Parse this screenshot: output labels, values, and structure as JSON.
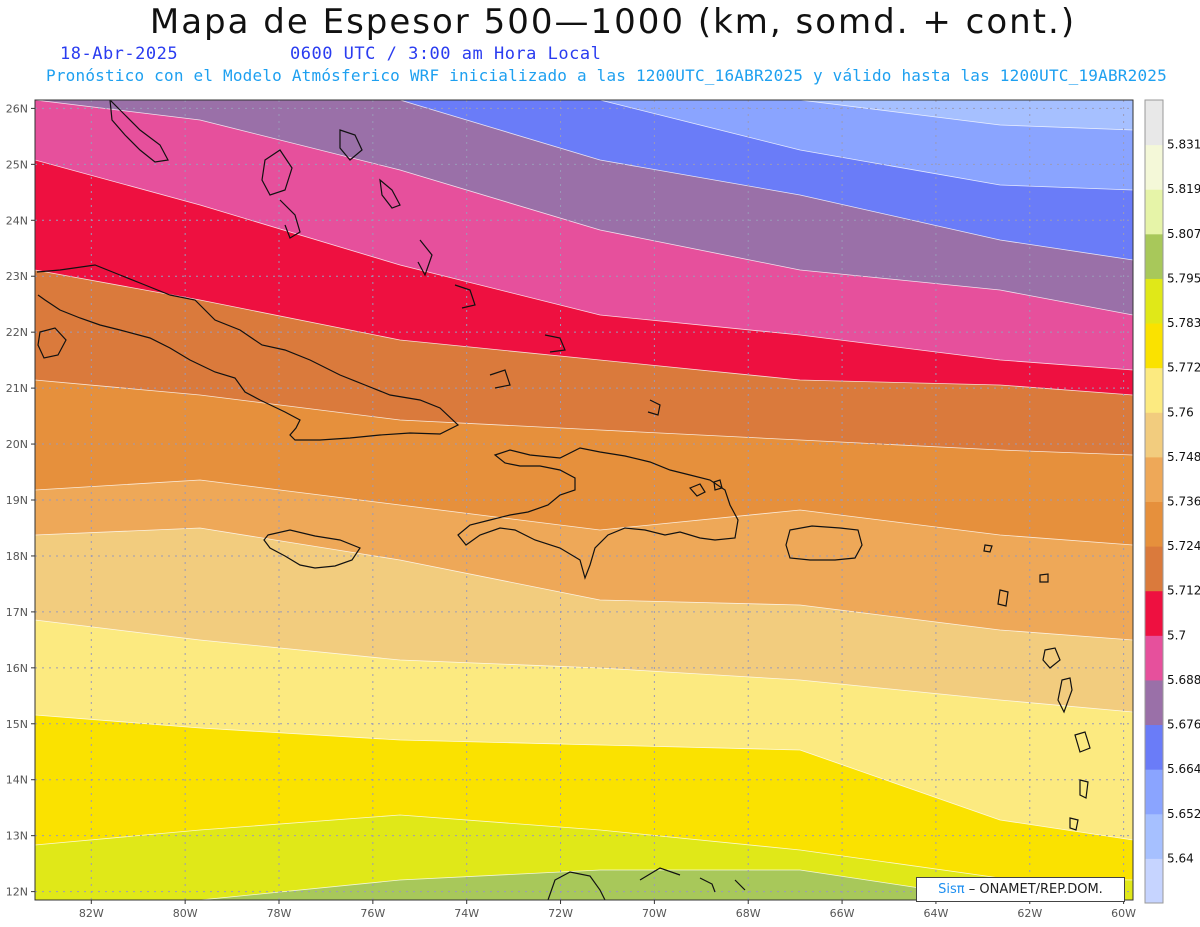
{
  "title": "Mapa de Espesor 500—1000 (km, somd. + cont.)",
  "date": "18-Abr-2025",
  "time": "0600 UTC / 3:00 am Hora Local",
  "subtitle": "Pronóstico con el Modelo Atmósferico WRF inicializado a las 1200UTC_16ABR2025 y válido hasta las  1200UTC_19ABR2025",
  "credit": {
    "logo": "Sisπ",
    "text": "– ONAMET/REP.DOM."
  },
  "map_data": {
    "lon_range": [
      -83.2,
      -59.8
    ],
    "lat_range": [
      11.85,
      26.15
    ],
    "lat_ticks": [
      "12N",
      "13N",
      "14N",
      "15N",
      "16N",
      "17N",
      "18N",
      "19N",
      "20N",
      "21N",
      "22N",
      "23N",
      "24N",
      "25N",
      "26N"
    ],
    "lon_ticks": [
      "82W",
      "80W",
      "78W",
      "76W",
      "74W",
      "72W",
      "70W",
      "68W",
      "66W",
      "64W",
      "62W",
      "60W"
    ],
    "colorbar": {
      "labels": [
        "5.64",
        "5.652",
        "5.664",
        "5.676",
        "5.688",
        "5.7",
        "5.712",
        "5.724",
        "5.736",
        "5.748",
        "5.76",
        "5.772",
        "5.783",
        "5.795",
        "5.807",
        "5.819",
        "5.831"
      ],
      "colors": [
        "#c6d4ff",
        "#a6c0ff",
        "#8aa4ff",
        "#6a7cf8",
        "#9a70a8",
        "#e6509c",
        "#ee1040",
        "#da7a3c",
        "#e6903c",
        "#eea858",
        "#f2cc7e",
        "#fcea80",
        "#fae200",
        "#e0e818",
        "#a8c85a",
        "#e6f4a8",
        "#f4f8d8",
        "#e8e8e8"
      ]
    },
    "bands": [
      {
        "color": "#a8c85a",
        "level": "5.807"
      },
      {
        "color": "#e0e818",
        "level": "5.795"
      },
      {
        "color": "#fae200",
        "level": "5.783"
      },
      {
        "color": "#fcea80",
        "level": "5.772"
      },
      {
        "color": "#f2cc7e",
        "level": "5.76"
      },
      {
        "color": "#eea858",
        "level": "5.748"
      },
      {
        "color": "#e6903c",
        "level": "5.736"
      },
      {
        "color": "#da7a3c",
        "level": "5.724"
      },
      {
        "color": "#ee1040",
        "level": "5.712"
      },
      {
        "color": "#e6509c",
        "level": "5.7"
      },
      {
        "color": "#9a70a8",
        "level": "5.688"
      },
      {
        "color": "#6a7cf8",
        "level": "5.676"
      },
      {
        "color": "#8aa4ff",
        "level": "5.664"
      },
      {
        "color": "#a6c0ff",
        "level": "5.652"
      },
      {
        "color": "#c6d4ff",
        "level": "5.64"
      }
    ]
  }
}
